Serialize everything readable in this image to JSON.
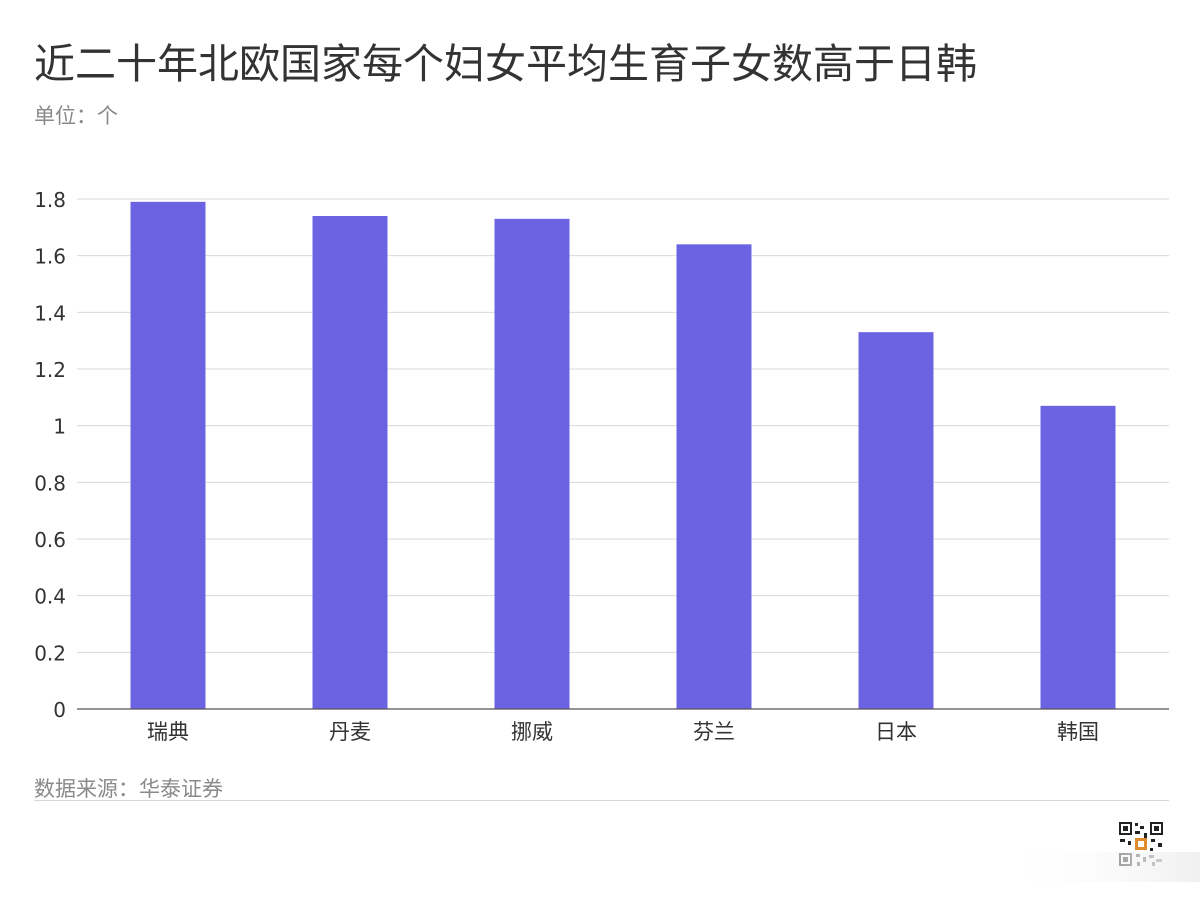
{
  "header": {
    "title": "近二十年北欧国家每个妇女平均生育子女数高于日韩",
    "subtitle": "单位：个"
  },
  "footer": {
    "source": "数据来源：华泰证券"
  },
  "colors": {
    "bar": "#6c63e3",
    "grid": "#d9d9d9",
    "axis": "#555555",
    "text": "#333333",
    "muted": "#8a8a8a"
  },
  "chart_data": {
    "type": "bar",
    "title": "近二十年北欧国家每个妇女平均生育子女数高于日韩",
    "subtitle": "单位：个",
    "categories": [
      "瑞典",
      "丹麦",
      "挪威",
      "芬兰",
      "日本",
      "韩国"
    ],
    "values": [
      1.79,
      1.74,
      1.73,
      1.64,
      1.33,
      1.07
    ],
    "ylim": [
      0,
      1.8
    ],
    "yticks": [
      "0",
      "0.2",
      "0.4",
      "0.6",
      "0.8",
      "1",
      "1.2",
      "1.4",
      "1.6",
      "1.8"
    ],
    "grid": true,
    "legend": "none"
  }
}
